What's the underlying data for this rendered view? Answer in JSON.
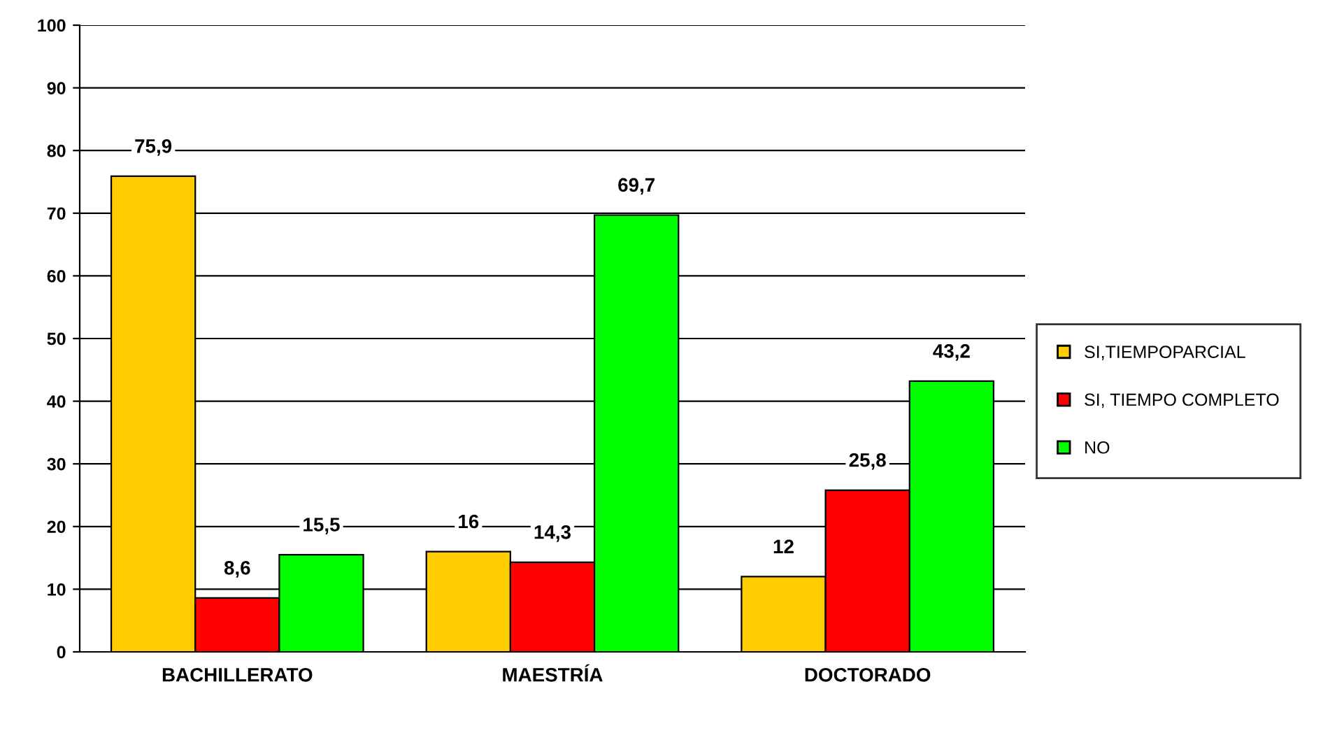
{
  "chart_data": {
    "type": "bar",
    "categories": [
      "BACHILLERATO",
      "MAESTRÍA",
      "DOCTORADO"
    ],
    "series": [
      {
        "name": "SI,TIEMPOPARCIAL",
        "color": "#ffcc00",
        "values": [
          75.9,
          16,
          12
        ],
        "value_labels": [
          "75,9",
          "16",
          "12"
        ]
      },
      {
        "name": "SI, TIEMPO COMPLETO",
        "color": "#ff0000",
        "values": [
          8.6,
          14.3,
          25.8
        ],
        "value_labels": [
          "8,6",
          "14,3",
          "25,8"
        ]
      },
      {
        "name": "NO",
        "color": "#00ff00",
        "values": [
          15.5,
          69.7,
          43.2
        ],
        "value_labels": [
          "15,5",
          "69,7",
          "43,2"
        ]
      }
    ],
    "ylim": [
      0,
      100
    ],
    "yticks": [
      0,
      10,
      20,
      30,
      40,
      50,
      60,
      70,
      80,
      90,
      100
    ],
    "grid": "y",
    "legend": "right"
  }
}
